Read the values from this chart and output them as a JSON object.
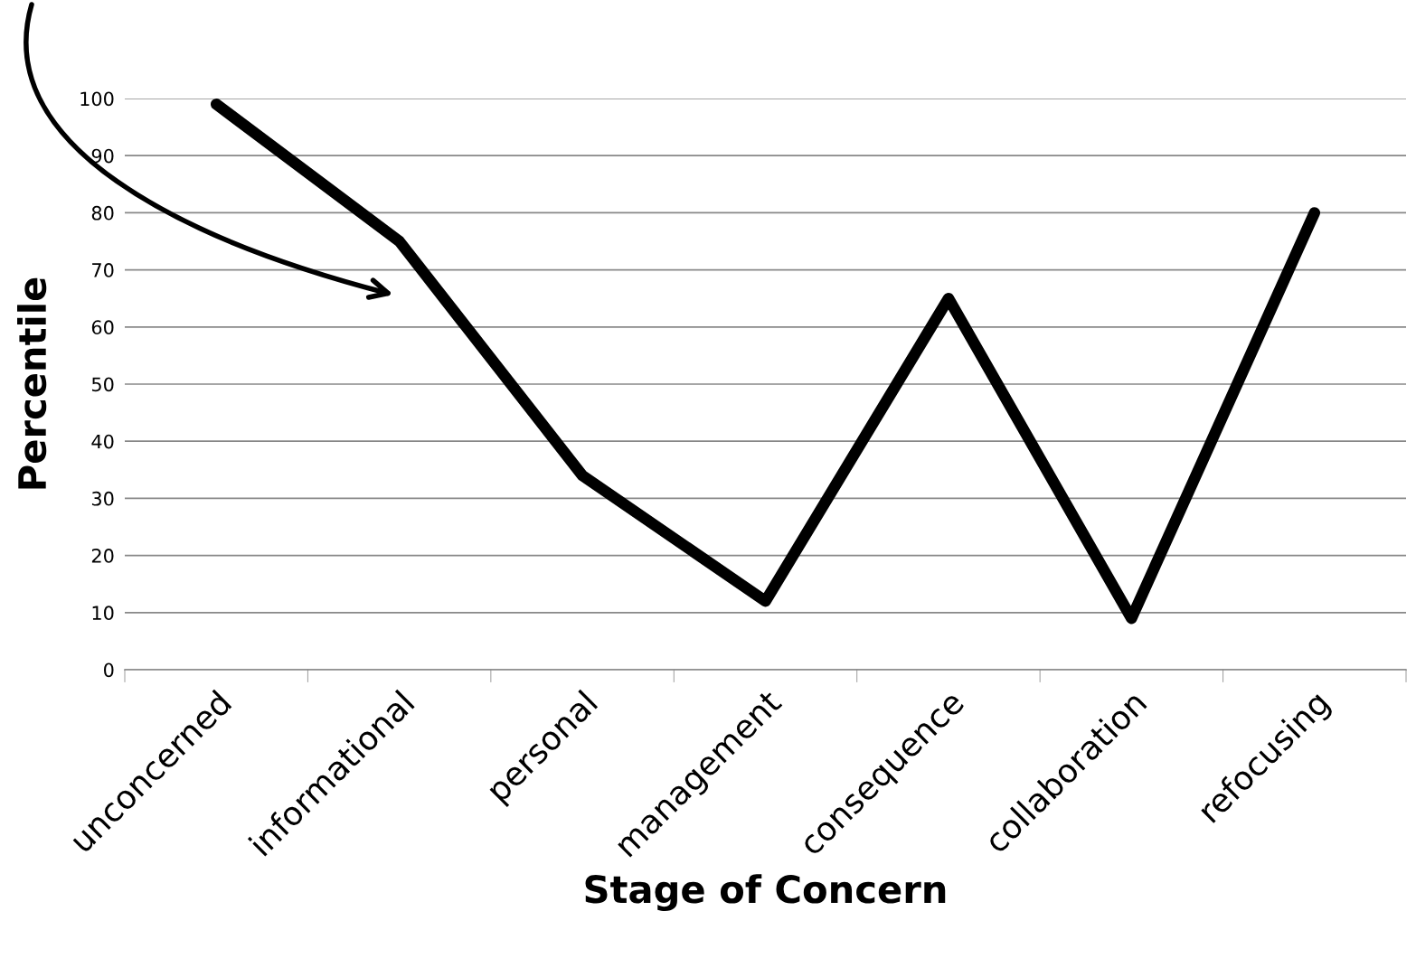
{
  "chart_data": {
    "type": "line",
    "categories": [
      "unconcerned",
      "informational",
      "personal",
      "management",
      "consequence",
      "collaboration",
      "refocusing"
    ],
    "series": [
      {
        "color": "#000000",
        "values": [
          99,
          75,
          34,
          12,
          65,
          9,
          80
        ]
      }
    ],
    "xlabel": "Stage of Concern",
    "ylabel": "Percentile",
    "ylim": [
      0,
      100
    ],
    "yticks": [
      0,
      10,
      20,
      30,
      40,
      50,
      60,
      70,
      80,
      90,
      100
    ],
    "grid": "y",
    "line_style": "solid",
    "legend": false
  }
}
